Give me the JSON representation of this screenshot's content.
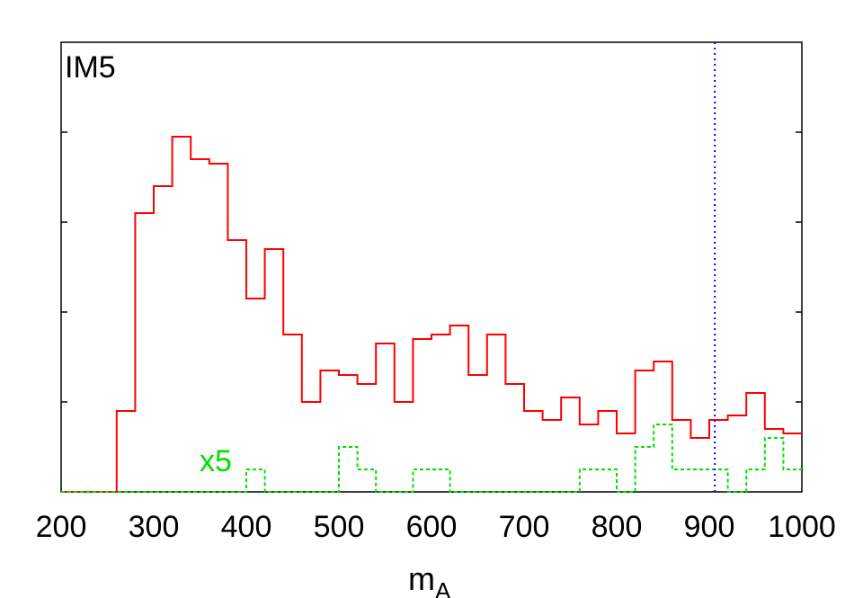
{
  "chart_data": {
    "type": "line",
    "panel_label": "IM5",
    "scale_annotation": "x5",
    "xlabel": "m",
    "xlabel_subscript": "A",
    "xlim": [
      200,
      1000
    ],
    "ylim": [
      0,
      100
    ],
    "x_ticks": [
      200,
      300,
      400,
      500,
      600,
      700,
      800,
      900,
      1000
    ],
    "vertical_marker": {
      "x": 906,
      "color": "#0000ff",
      "style": "dotted"
    },
    "series": [
      {
        "color": "#ff0000",
        "style": "solid",
        "bin_width": 20,
        "bin_edges_start": 200,
        "values": [
          0,
          0,
          0,
          18,
          62,
          68,
          79,
          74,
          73,
          56,
          43,
          54,
          35,
          20,
          27,
          26,
          24,
          33,
          20,
          34,
          35,
          37,
          26,
          35,
          24,
          18,
          16,
          21,
          15,
          18,
          13,
          27,
          29,
          16,
          12,
          16,
          17,
          22,
          14,
          13
        ]
      },
      {
        "color": "#00e000",
        "style": "dashed",
        "bin_width": 20,
        "bin_edges_start": 200,
        "values": [
          0,
          0,
          0,
          0,
          0,
          0,
          0,
          0,
          0,
          0,
          5,
          0,
          0,
          0,
          0,
          10,
          5,
          0,
          0,
          5,
          5,
          0,
          0,
          0,
          0,
          0,
          0,
          0,
          5,
          5,
          0,
          10,
          15,
          5,
          5,
          5,
          0,
          5,
          12,
          5
        ]
      }
    ],
    "colors": {
      "axis": "#000000"
    }
  }
}
